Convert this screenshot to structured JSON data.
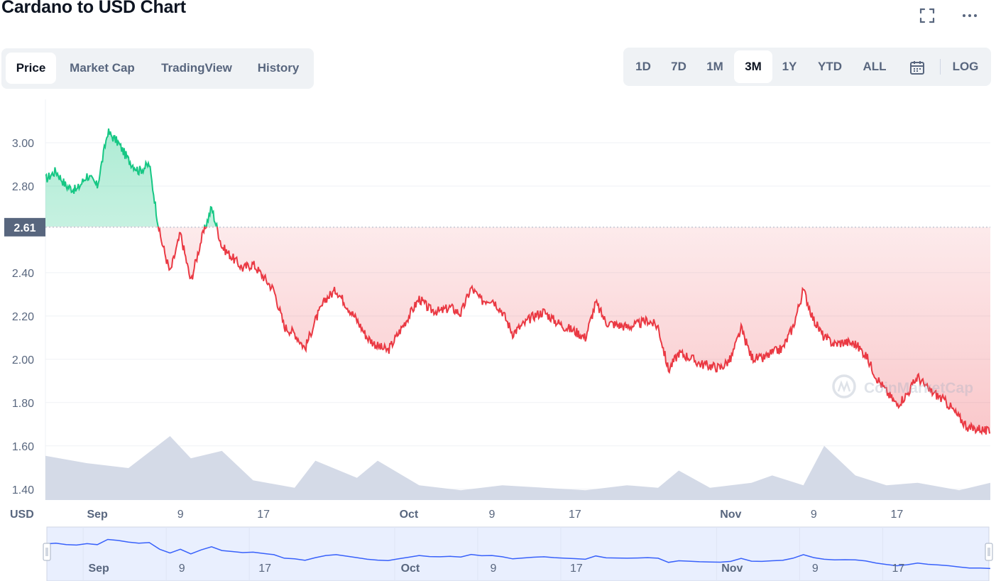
{
  "header": {
    "title": "Cardano to USD Chart"
  },
  "icons": {
    "fullscreen": "fullscreen-icon",
    "more": "more-icon",
    "calendar": "calendar-icon"
  },
  "tabs": [
    {
      "label": "Price",
      "active": true
    },
    {
      "label": "Market Cap",
      "active": false
    },
    {
      "label": "TradingView",
      "active": false
    },
    {
      "label": "History",
      "active": false
    }
  ],
  "ranges": [
    {
      "label": "1D",
      "active": false
    },
    {
      "label": "7D",
      "active": false
    },
    {
      "label": "1M",
      "active": false
    },
    {
      "label": "3M",
      "active": true
    },
    {
      "label": "1Y",
      "active": false
    },
    {
      "label": "YTD",
      "active": false
    },
    {
      "label": "ALL",
      "active": false
    }
  ],
  "log_label": "LOG",
  "watermark": "CoinMarketCap",
  "colors": {
    "up": "#16c784",
    "down": "#ea3943",
    "volume": "#cfd6e4",
    "navigator": "#3861fb",
    "navigator_fill": "#e9effe"
  },
  "chart_data": {
    "type": "line",
    "currency_label": "USD",
    "reference_price": 2.61,
    "reference_label": "2.61",
    "ylim": [
      1.35,
      3.2
    ],
    "y_ticks": [
      {
        "value": 3.0,
        "label": "3.00"
      },
      {
        "value": 2.8,
        "label": "2.80"
      },
      {
        "value": 2.4,
        "label": "2.40"
      },
      {
        "value": 2.2,
        "label": "2.20"
      },
      {
        "value": 2.0,
        "label": "2.00"
      },
      {
        "value": 1.8,
        "label": "1.80"
      },
      {
        "value": 1.6,
        "label": "1.60"
      },
      {
        "value": 1.4,
        "label": "1.40"
      }
    ],
    "x_range": [
      "2021-08-27",
      "2021-11-26"
    ],
    "x_ticks": [
      {
        "date": "2021-09-01",
        "label": "Sep",
        "bold": true
      },
      {
        "date": "2021-09-09",
        "label": "9",
        "bold": false
      },
      {
        "date": "2021-09-17",
        "label": "17",
        "bold": false
      },
      {
        "date": "2021-10-01",
        "label": "Oct",
        "bold": true
      },
      {
        "date": "2021-10-09",
        "label": "9",
        "bold": false
      },
      {
        "date": "2021-10-17",
        "label": "17",
        "bold": false
      },
      {
        "date": "2021-11-01",
        "label": "Nov",
        "bold": true
      },
      {
        "date": "2021-11-09",
        "label": "9",
        "bold": false
      },
      {
        "date": "2021-11-17",
        "label": "17",
        "bold": false
      }
    ],
    "series": [
      {
        "x": [
          "2021-08-27",
          "2021-08-28",
          "2021-08-29",
          "2021-08-30",
          "2021-08-31",
          "2021-09-01",
          "2021-09-02",
          "2021-09-03",
          "2021-09-04",
          "2021-09-05",
          "2021-09-06",
          "2021-09-07",
          "2021-09-08",
          "2021-09-09",
          "2021-09-10",
          "2021-09-11",
          "2021-09-12",
          "2021-09-13",
          "2021-09-14",
          "2021-09-15",
          "2021-09-16",
          "2021-09-17",
          "2021-09-18",
          "2021-09-19",
          "2021-09-20",
          "2021-09-21",
          "2021-09-22",
          "2021-09-23",
          "2021-09-24",
          "2021-09-25",
          "2021-09-26",
          "2021-09-27",
          "2021-09-28",
          "2021-09-29",
          "2021-09-30",
          "2021-10-01",
          "2021-10-02",
          "2021-10-03",
          "2021-10-04",
          "2021-10-05",
          "2021-10-06",
          "2021-10-07",
          "2021-10-08",
          "2021-10-09",
          "2021-10-10",
          "2021-10-11",
          "2021-10-12",
          "2021-10-13",
          "2021-10-14",
          "2021-10-15",
          "2021-10-16",
          "2021-10-17",
          "2021-10-18",
          "2021-10-19",
          "2021-10-20",
          "2021-10-21",
          "2021-10-22",
          "2021-10-23",
          "2021-10-24",
          "2021-10-25",
          "2021-10-26",
          "2021-10-27",
          "2021-10-28",
          "2021-10-29",
          "2021-10-30",
          "2021-10-31",
          "2021-11-01",
          "2021-11-02",
          "2021-11-03",
          "2021-11-04",
          "2021-11-05",
          "2021-11-06",
          "2021-11-07",
          "2021-11-08",
          "2021-11-09",
          "2021-11-10",
          "2021-11-11",
          "2021-11-12",
          "2021-11-13",
          "2021-11-14",
          "2021-11-15",
          "2021-11-16",
          "2021-11-17",
          "2021-11-18",
          "2021-11-19",
          "2021-11-20",
          "2021-11-21",
          "2021-11-22",
          "2021-11-23",
          "2021-11-24",
          "2021-11-25",
          "2021-11-26"
        ],
        "y": [
          2.83,
          2.87,
          2.8,
          2.78,
          2.85,
          2.8,
          3.05,
          3.0,
          2.92,
          2.87,
          2.9,
          2.58,
          2.4,
          2.58,
          2.36,
          2.55,
          2.7,
          2.52,
          2.47,
          2.42,
          2.44,
          2.38,
          2.32,
          2.15,
          2.12,
          2.05,
          2.18,
          2.28,
          2.32,
          2.25,
          2.18,
          2.1,
          2.06,
          2.04,
          2.12,
          2.2,
          2.28,
          2.23,
          2.22,
          2.24,
          2.21,
          2.33,
          2.27,
          2.28,
          2.22,
          2.12,
          2.16,
          2.2,
          2.22,
          2.18,
          2.15,
          2.13,
          2.1,
          2.26,
          2.17,
          2.16,
          2.15,
          2.16,
          2.18,
          2.15,
          1.95,
          2.03,
          2.01,
          1.98,
          1.97,
          1.96,
          2.0,
          2.14,
          2.01,
          2.0,
          2.03,
          2.05,
          2.15,
          2.32,
          2.18,
          2.1,
          2.07,
          2.08,
          2.07,
          2.02,
          1.92,
          1.85,
          1.79,
          1.84,
          1.92,
          1.86,
          1.83,
          1.79,
          1.73,
          1.68,
          1.68,
          1.66
        ]
      }
    ],
    "volume": {
      "x": [
        "2021-08-27",
        "2021-08-31",
        "2021-09-04",
        "2021-09-08",
        "2021-09-10",
        "2021-09-13",
        "2021-09-16",
        "2021-09-20",
        "2021-09-22",
        "2021-09-26",
        "2021-09-28",
        "2021-10-02",
        "2021-10-06",
        "2021-10-10",
        "2021-10-14",
        "2021-10-18",
        "2021-10-22",
        "2021-10-25",
        "2021-10-27",
        "2021-10-30",
        "2021-11-03",
        "2021-11-05",
        "2021-11-08",
        "2021-11-10",
        "2021-11-13",
        "2021-11-16",
        "2021-11-19",
        "2021-11-23",
        "2021-11-26"
      ],
      "y": [
        0.9,
        0.75,
        0.65,
        1.3,
        0.85,
        1.0,
        0.4,
        0.25,
        0.8,
        0.45,
        0.8,
        0.3,
        0.2,
        0.3,
        0.25,
        0.2,
        0.3,
        0.25,
        0.6,
        0.25,
        0.35,
        0.5,
        0.3,
        1.1,
        0.5,
        0.3,
        0.35,
        0.2,
        0.35
      ]
    }
  },
  "navigator": {
    "x_ticks": [
      {
        "label": "Sep",
        "bold": true
      },
      {
        "label": "9",
        "bold": false
      },
      {
        "label": "17",
        "bold": false
      },
      {
        "label": "Oct",
        "bold": true
      },
      {
        "label": "9",
        "bold": false
      },
      {
        "label": "17",
        "bold": false
      },
      {
        "label": "Nov",
        "bold": true
      },
      {
        "label": "9",
        "bold": false
      },
      {
        "label": "17",
        "bold": false
      }
    ]
  }
}
